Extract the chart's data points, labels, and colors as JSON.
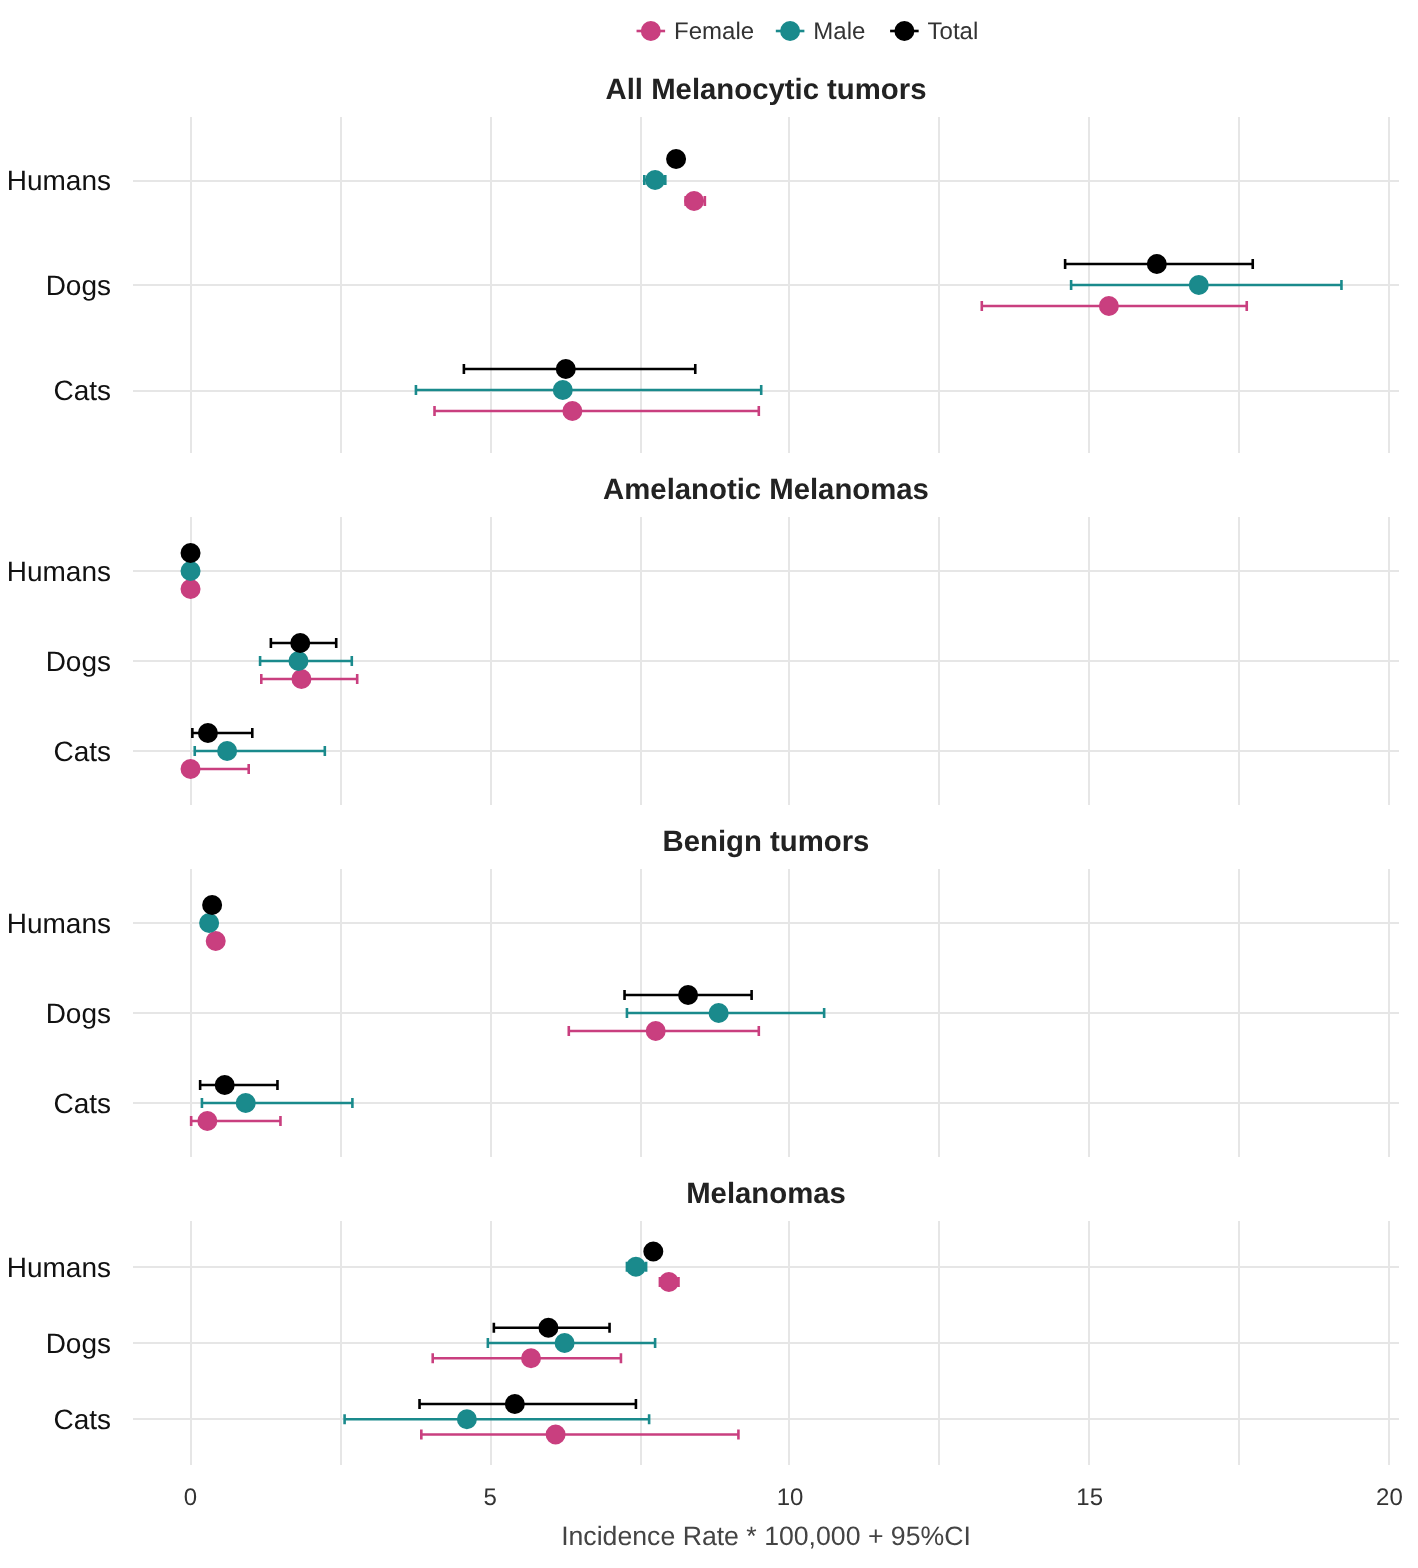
{
  "chart_data": [
    {
      "type": "scatter",
      "orientation": "horizontal",
      "title": "All Melanocytic tumors",
      "categories": [
        "Humans",
        "Dogs",
        "Cats"
      ],
      "xlim": [
        -0.96,
        20.16
      ],
      "xticks": [
        0,
        {
          "value": 2.5,
          "label": null
        },
        5,
        {
          "value": 7.5,
          "label": null
        },
        10,
        {
          "value": 12.5,
          "label": null
        },
        15,
        {
          "value": 17.5,
          "label": null
        },
        20
      ],
      "tick_labels": "y",
      "grid": true,
      "legend": "top",
      "marker": "circle",
      "series": [
        {
          "name": "Female",
          "color": "#c93f7f",
          "values": [
            8.4,
            15.32,
            6.37
          ],
          "errors": [
            [
              8.26,
              8.58
            ],
            [
              13.2,
              17.62
            ],
            [
              4.07,
              9.48
            ]
          ]
        },
        {
          "name": "Male",
          "color": "#1a8a8c",
          "values": [
            7.75,
            16.82,
            6.21
          ],
          "errors": [
            [
              7.57,
              7.92
            ],
            [
              14.69,
              19.2
            ],
            [
              3.76,
              9.52
            ]
          ]
        },
        {
          "name": "Total",
          "color": "#000000",
          "values": [
            8.1,
            16.12,
            6.26
          ],
          "errors": [
            null,
            [
              14.59,
              17.72
            ],
            [
              4.56,
              8.42
            ]
          ]
        }
      ]
    },
    {
      "type": "scatter",
      "orientation": "horizontal",
      "title": "Amelanotic Melanomas",
      "categories": [
        "Humans",
        "Dogs",
        "Cats"
      ],
      "xlim": [
        -0.96,
        20.16
      ],
      "xticks": [
        0,
        {
          "value": 2.5,
          "label": null
        },
        5,
        {
          "value": 7.5,
          "label": null
        },
        10,
        {
          "value": 12.5,
          "label": null
        },
        15,
        {
          "value": 17.5,
          "label": null
        },
        20
      ],
      "tick_labels": "y",
      "grid": true,
      "marker": "circle",
      "series": [
        {
          "name": "Female",
          "color": "#c93f7f",
          "values": [
            0,
            1.85,
            0
          ],
          "errors": [
            null,
            [
              1.18,
              2.78
            ],
            [
              0,
              0.97
            ]
          ]
        },
        {
          "name": "Male",
          "color": "#1a8a8c",
          "values": [
            0,
            1.8,
            0.61
          ],
          "errors": [
            null,
            [
              1.16,
              2.69
            ],
            [
              0.07,
              2.24
            ]
          ]
        },
        {
          "name": "Total",
          "color": "#000000",
          "values": [
            0,
            1.83,
            0.29
          ],
          "errors": [
            null,
            [
              1.34,
              2.43
            ],
            [
              0.03,
              1.03
            ]
          ]
        }
      ]
    },
    {
      "type": "scatter",
      "orientation": "horizontal",
      "title": "Benign tumors",
      "categories": [
        "Humans",
        "Dogs",
        "Cats"
      ],
      "xlim": [
        -0.96,
        20.16
      ],
      "xticks": [
        0,
        {
          "value": 2.5,
          "label": null
        },
        5,
        {
          "value": 7.5,
          "label": null
        },
        10,
        {
          "value": 12.5,
          "label": null
        },
        15,
        {
          "value": 17.5,
          "label": null
        },
        20
      ],
      "tick_labels": "y",
      "grid": true,
      "marker": "circle",
      "series": [
        {
          "name": "Female",
          "color": "#c93f7f",
          "values": [
            0.42,
            7.76,
            0.28
          ],
          "errors": [
            null,
            [
              6.31,
              9.48
            ],
            [
              0.01,
              1.5
            ]
          ]
        },
        {
          "name": "Male",
          "color": "#1a8a8c",
          "values": [
            0.31,
            8.81,
            0.92
          ],
          "errors": [
            null,
            [
              7.28,
              10.57
            ],
            [
              0.19,
              2.7
            ]
          ]
        },
        {
          "name": "Total",
          "color": "#000000",
          "values": [
            0.36,
            8.3,
            0.57
          ],
          "errors": [
            null,
            [
              7.24,
              9.36
            ],
            [
              0.16,
              1.45
            ]
          ]
        }
      ]
    },
    {
      "type": "scatter",
      "orientation": "horizontal",
      "title": "Melanomas",
      "xlabel": "Incidence Rate * 100,000 + 95%CI",
      "categories": [
        "Humans",
        "Dogs",
        "Cats"
      ],
      "xlim": [
        -0.96,
        20.16
      ],
      "xticks": [
        0,
        {
          "value": 2.5,
          "label": null
        },
        5,
        {
          "value": 7.5,
          "label": null
        },
        10,
        {
          "value": 12.5,
          "label": null
        },
        15,
        {
          "value": 17.5,
          "label": null
        },
        20
      ],
      "grid": true,
      "marker": "circle",
      "series": [
        {
          "name": "Female",
          "color": "#c93f7f",
          "values": [
            7.98,
            5.68,
            6.09
          ],
          "errors": [
            [
              7.83,
              8.14
            ],
            [
              4.04,
              7.18
            ],
            [
              3.85,
              9.14
            ]
          ]
        },
        {
          "name": "Male",
          "color": "#1a8a8c",
          "values": [
            7.43,
            6.24,
            4.61
          ],
          "errors": [
            [
              7.28,
              7.6
            ],
            [
              4.96,
              7.75
            ],
            [
              2.57,
              7.65
            ]
          ]
        },
        {
          "name": "Total",
          "color": "#000000",
          "values": [
            7.72,
            5.97,
            5.41
          ],
          "errors": [
            null,
            [
              5.06,
              6.99
            ],
            [
              3.82,
              7.43
            ]
          ]
        }
      ]
    }
  ]
}
